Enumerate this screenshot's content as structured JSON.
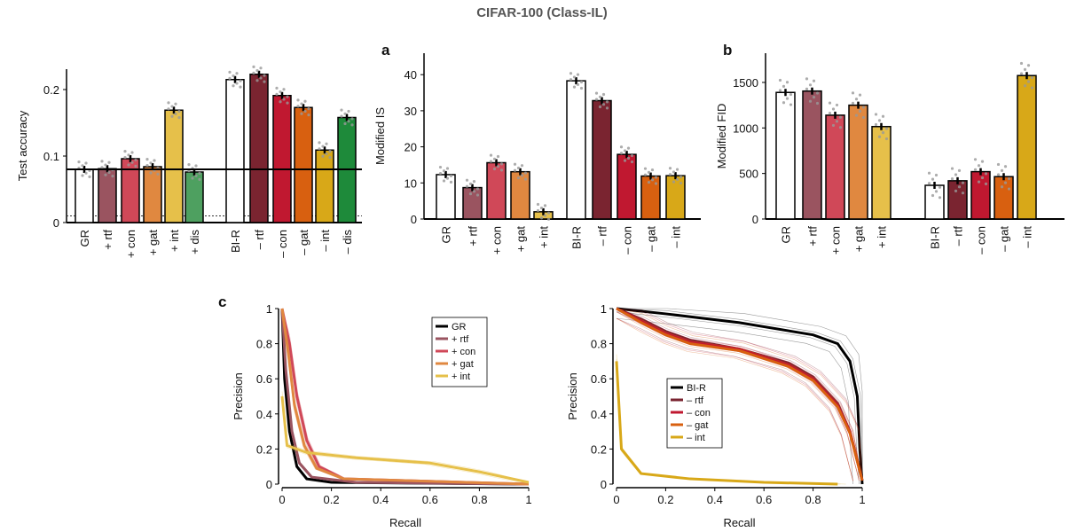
{
  "title": "CIFAR-100 (Class-IL)",
  "chart_data": [
    {
      "type": "bar",
      "panel_label": "",
      "ylabel": "Test accuracy",
      "yticks": [
        "0",
        "0.1",
        "0.2"
      ],
      "ytick_values": [
        0,
        0.1,
        0.2
      ],
      "ylim": [
        0,
        0.23
      ],
      "categories": [
        "GR",
        "+ rtf",
        "+ con",
        "+ gat",
        "+ int",
        "+ dis",
        "BI-R",
        "– rtf",
        "– con",
        "– gat",
        "– int",
        "– dis"
      ],
      "values": [
        0.08,
        0.081,
        0.096,
        0.084,
        0.169,
        0.076,
        0.215,
        0.223,
        0.191,
        0.173,
        0.109,
        0.158
      ],
      "colors": [
        "#ffffff",
        "#9a5460",
        "#d04858",
        "#e08840",
        "#e6c04a",
        "#4ea060",
        "#ffffff",
        "#7a2430",
        "#c01830",
        "#d86010",
        "#d8a818",
        "#1e8a3a"
      ],
      "reference_line": 0.08,
      "chance_line": 0.01
    },
    {
      "type": "bar",
      "panel_label": "a",
      "ylabel": "Modified IS",
      "yticks": [
        "0",
        "10",
        "20",
        "30",
        "40"
      ],
      "ytick_values": [
        0,
        10,
        20,
        30,
        40
      ],
      "ylim": [
        0,
        45
      ],
      "categories": [
        "GR",
        "+ rtf",
        "+ con",
        "+ gat",
        "+ int",
        "BI-R",
        "– rtf",
        "– con",
        "– gat",
        "– int"
      ],
      "values": [
        12.3,
        8.7,
        15.6,
        13.1,
        2.0,
        38.3,
        32.8,
        17.9,
        11.9,
        12.0
      ],
      "colors": [
        "#ffffff",
        "#9a5460",
        "#d04858",
        "#e08840",
        "#e6c04a",
        "#ffffff",
        "#7a2430",
        "#c01830",
        "#d86010",
        "#d8a818"
      ]
    },
    {
      "type": "bar",
      "panel_label": "b",
      "ylabel": "Modified FID",
      "yticks": [
        "0",
        "500",
        "1000",
        "1500"
      ],
      "ytick_values": [
        0,
        500,
        1000,
        1500
      ],
      "ylim": [
        0,
        1800
      ],
      "categories": [
        "GR",
        "+ rtf",
        "+ con",
        "+ gat",
        "+ int",
        "BI-R",
        "– rtf",
        "– con",
        "– gat",
        "– int"
      ],
      "values": [
        1390,
        1405,
        1140,
        1250,
        1015,
        370,
        420,
        520,
        465,
        1575
      ],
      "colors": [
        "#ffffff",
        "#9a5460",
        "#d04858",
        "#e08840",
        "#e6c04a",
        "#ffffff",
        "#7a2430",
        "#c01830",
        "#d86010",
        "#d8a818"
      ]
    },
    {
      "type": "line",
      "panel_label": "c",
      "xlabel": "Recall",
      "ylabel": "Precision",
      "xticks": [
        "0",
        "0.2",
        "0.4",
        "0.6",
        "0.8",
        "1"
      ],
      "yticks": [
        "0",
        "0.2",
        "0.4",
        "0.6",
        "0.8",
        "1"
      ],
      "xlim": [
        0,
        1
      ],
      "ylim": [
        0,
        1
      ],
      "legend": "top-right",
      "series": [
        {
          "name": "GR",
          "color": "#000000",
          "points": [
            [
              0,
              1
            ],
            [
              0.01,
              0.6
            ],
            [
              0.03,
              0.3
            ],
            [
              0.06,
              0.1
            ],
            [
              0.1,
              0.03
            ],
            [
              0.2,
              0.01
            ],
            [
              1,
              0
            ]
          ]
        },
        {
          "name": "+ rtf",
          "color": "#9a5460",
          "points": [
            [
              0,
              1
            ],
            [
              0.015,
              0.65
            ],
            [
              0.04,
              0.3
            ],
            [
              0.07,
              0.12
            ],
            [
              0.12,
              0.04
            ],
            [
              0.3,
              0.01
            ],
            [
              1,
              0
            ]
          ]
        },
        {
          "name": "+ con",
          "color": "#d04858",
          "points": [
            [
              0,
              1
            ],
            [
              0.03,
              0.8
            ],
            [
              0.06,
              0.5
            ],
            [
              0.1,
              0.25
            ],
            [
              0.15,
              0.1
            ],
            [
              0.25,
              0.03
            ],
            [
              1,
              0
            ]
          ]
        },
        {
          "name": "+ gat",
          "color": "#e08840",
          "points": [
            [
              0,
              1
            ],
            [
              0.025,
              0.75
            ],
            [
              0.05,
              0.45
            ],
            [
              0.09,
              0.22
            ],
            [
              0.14,
              0.09
            ],
            [
              0.25,
              0.03
            ],
            [
              1,
              0
            ]
          ]
        },
        {
          "name": "+ int",
          "color": "#e6c04a",
          "points": [
            [
              0,
              0.5
            ],
            [
              0.02,
              0.22
            ],
            [
              0.1,
              0.18
            ],
            [
              0.3,
              0.15
            ],
            [
              0.6,
              0.12
            ],
            [
              0.8,
              0.07
            ],
            [
              1,
              0.01
            ]
          ]
        }
      ]
    },
    {
      "type": "line",
      "panel_label": "",
      "xlabel": "Recall",
      "ylabel": "Precision",
      "xticks": [
        "0",
        "0.2",
        "0.4",
        "0.6",
        "0.8",
        "1"
      ],
      "yticks": [
        "0",
        "0.2",
        "0.4",
        "0.6",
        "0.8",
        "1"
      ],
      "xlim": [
        0,
        1
      ],
      "ylim": [
        0,
        1
      ],
      "legend": "center-left",
      "series": [
        {
          "name": "BI-R",
          "color": "#000000",
          "points": [
            [
              0,
              1
            ],
            [
              0.2,
              0.97
            ],
            [
              0.5,
              0.92
            ],
            [
              0.8,
              0.85
            ],
            [
              0.9,
              0.8
            ],
            [
              0.95,
              0.7
            ],
            [
              0.98,
              0.5
            ],
            [
              0.99,
              0.2
            ],
            [
              1,
              0
            ]
          ]
        },
        {
          "name": "– rtf",
          "color": "#7a2430",
          "points": [
            [
              0,
              1
            ],
            [
              0.1,
              0.94
            ],
            [
              0.2,
              0.87
            ],
            [
              0.3,
              0.82
            ],
            [
              0.5,
              0.77
            ],
            [
              0.7,
              0.69
            ],
            [
              0.8,
              0.61
            ],
            [
              0.9,
              0.46
            ],
            [
              0.95,
              0.3
            ],
            [
              1,
              0.02
            ]
          ]
        },
        {
          "name": "– con",
          "color": "#c01830",
          "points": [
            [
              0,
              1
            ],
            [
              0.1,
              0.93
            ],
            [
              0.2,
              0.86
            ],
            [
              0.3,
              0.81
            ],
            [
              0.5,
              0.77
            ],
            [
              0.7,
              0.68
            ],
            [
              0.8,
              0.6
            ],
            [
              0.9,
              0.45
            ],
            [
              0.95,
              0.3
            ],
            [
              1,
              0.02
            ]
          ]
        },
        {
          "name": "– gat",
          "color": "#d86010",
          "points": [
            [
              0,
              1
            ],
            [
              0.1,
              0.92
            ],
            [
              0.2,
              0.85
            ],
            [
              0.3,
              0.8
            ],
            [
              0.5,
              0.76
            ],
            [
              0.7,
              0.67
            ],
            [
              0.8,
              0.59
            ],
            [
              0.9,
              0.44
            ],
            [
              0.95,
              0.29
            ],
            [
              1,
              0.02
            ]
          ]
        },
        {
          "name": "– int",
          "color": "#d8a818",
          "points": [
            [
              0,
              0.7
            ],
            [
              0.02,
              0.2
            ],
            [
              0.1,
              0.06
            ],
            [
              0.3,
              0.03
            ],
            [
              0.6,
              0.01
            ],
            [
              0.9,
              0.0
            ]
          ]
        }
      ]
    }
  ]
}
